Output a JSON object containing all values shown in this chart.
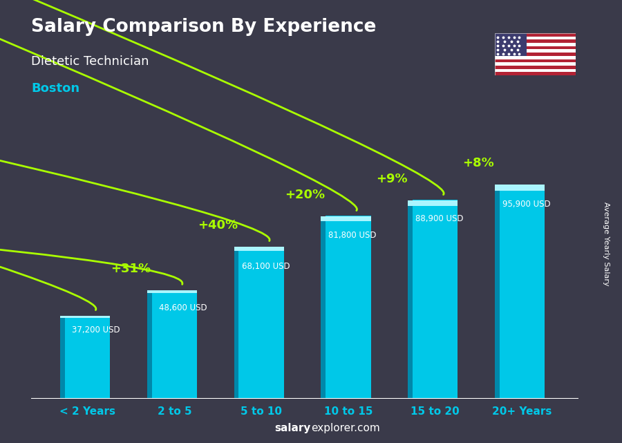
{
  "title": "Salary Comparison By Experience",
  "subtitle": "Dietetic Technician",
  "city": "Boston",
  "categories": [
    "< 2 Years",
    "2 to 5",
    "5 to 10",
    "10 to 15",
    "15 to 20",
    "20+ Years"
  ],
  "values": [
    37200,
    48600,
    68100,
    81800,
    88900,
    95900
  ],
  "labels": [
    "37,200 USD",
    "48,600 USD",
    "68,100 USD",
    "81,800 USD",
    "88,900 USD",
    "95,900 USD"
  ],
  "pct_labels": [
    "+31%",
    "+40%",
    "+20%",
    "+9%",
    "+8%"
  ],
  "bar_color_main": "#00c8e8",
  "bar_color_dark": "#0088aa",
  "bar_color_top": "#aaf5ff",
  "bg_color": "#3a3a4a",
  "title_color": "#ffffff",
  "subtitle_color": "#ffffff",
  "city_color": "#00c8e8",
  "label_color": "#ffffff",
  "pct_color": "#aaff00",
  "xlabel_color": "#00c8e8",
  "ylabel_text": "Average Yearly Salary",
  "footer_bold": "salary",
  "footer_normal": "explorer.com",
  "footer_color": "#ffffff",
  "ylim_max": 115000,
  "figsize": [
    9.0,
    6.41
  ]
}
